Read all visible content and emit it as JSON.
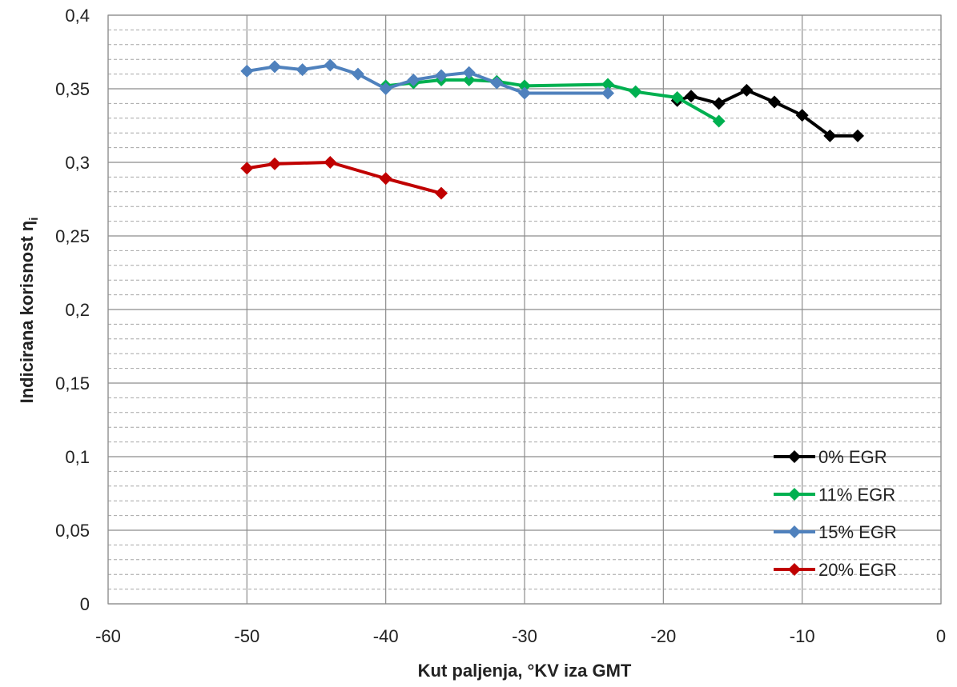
{
  "chart_data": {
    "type": "line",
    "xlabel": "Kut paljenja, °KV iza GMT",
    "ylabel_main": "Indicirana korisnost η",
    "ylabel_sub": "i",
    "xlim": [
      -60,
      0
    ],
    "ylim": [
      0,
      0.4
    ],
    "x_ticks": [
      -60,
      -50,
      -40,
      -30,
      -20,
      -10,
      0
    ],
    "x_tick_labels": [
      "-60",
      "-50",
      "-40",
      "-30",
      "-20",
      "-10",
      "0"
    ],
    "y_ticks": [
      0,
      0.05,
      0.1,
      0.15,
      0.2,
      0.25,
      0.3,
      0.35,
      0.4
    ],
    "y_tick_labels": [
      "0",
      "0,05",
      "0,1",
      "0,15",
      "0,2",
      "0,25",
      "0,3",
      "0,35",
      "0,4"
    ],
    "grid": "major solid, minor dashed",
    "legend_position": "bottom-right",
    "marker": "diamond",
    "series": [
      {
        "name": "0% EGR",
        "color": "#000000",
        "x": [
          -19,
          -18,
          -16,
          -14,
          -12,
          -10,
          -8,
          -6
        ],
        "y": [
          0.342,
          0.345,
          0.34,
          0.349,
          0.341,
          0.332,
          0.318,
          0.318
        ]
      },
      {
        "name": "11% EGR",
        "color": "#00b050",
        "x": [
          -40,
          -38,
          -36,
          -34,
          -32,
          -30,
          -24,
          -22,
          -19,
          -16
        ],
        "y": [
          0.352,
          0.354,
          0.356,
          0.356,
          0.355,
          0.352,
          0.353,
          0.348,
          0.344,
          0.328
        ]
      },
      {
        "name": "15% EGR",
        "color": "#4f81bd",
        "x": [
          -50,
          -48,
          -46,
          -44,
          -42,
          -40,
          -38,
          -36,
          -34,
          -32,
          -30,
          -24
        ],
        "y": [
          0.362,
          0.365,
          0.363,
          0.366,
          0.36,
          0.35,
          0.356,
          0.359,
          0.361,
          0.354,
          0.347,
          0.347
        ]
      },
      {
        "name": "20% EGR",
        "color": "#c00000",
        "x": [
          -50,
          -48,
          -44,
          -40,
          -36
        ],
        "y": [
          0.296,
          0.299,
          0.3,
          0.289,
          0.279
        ]
      }
    ]
  }
}
